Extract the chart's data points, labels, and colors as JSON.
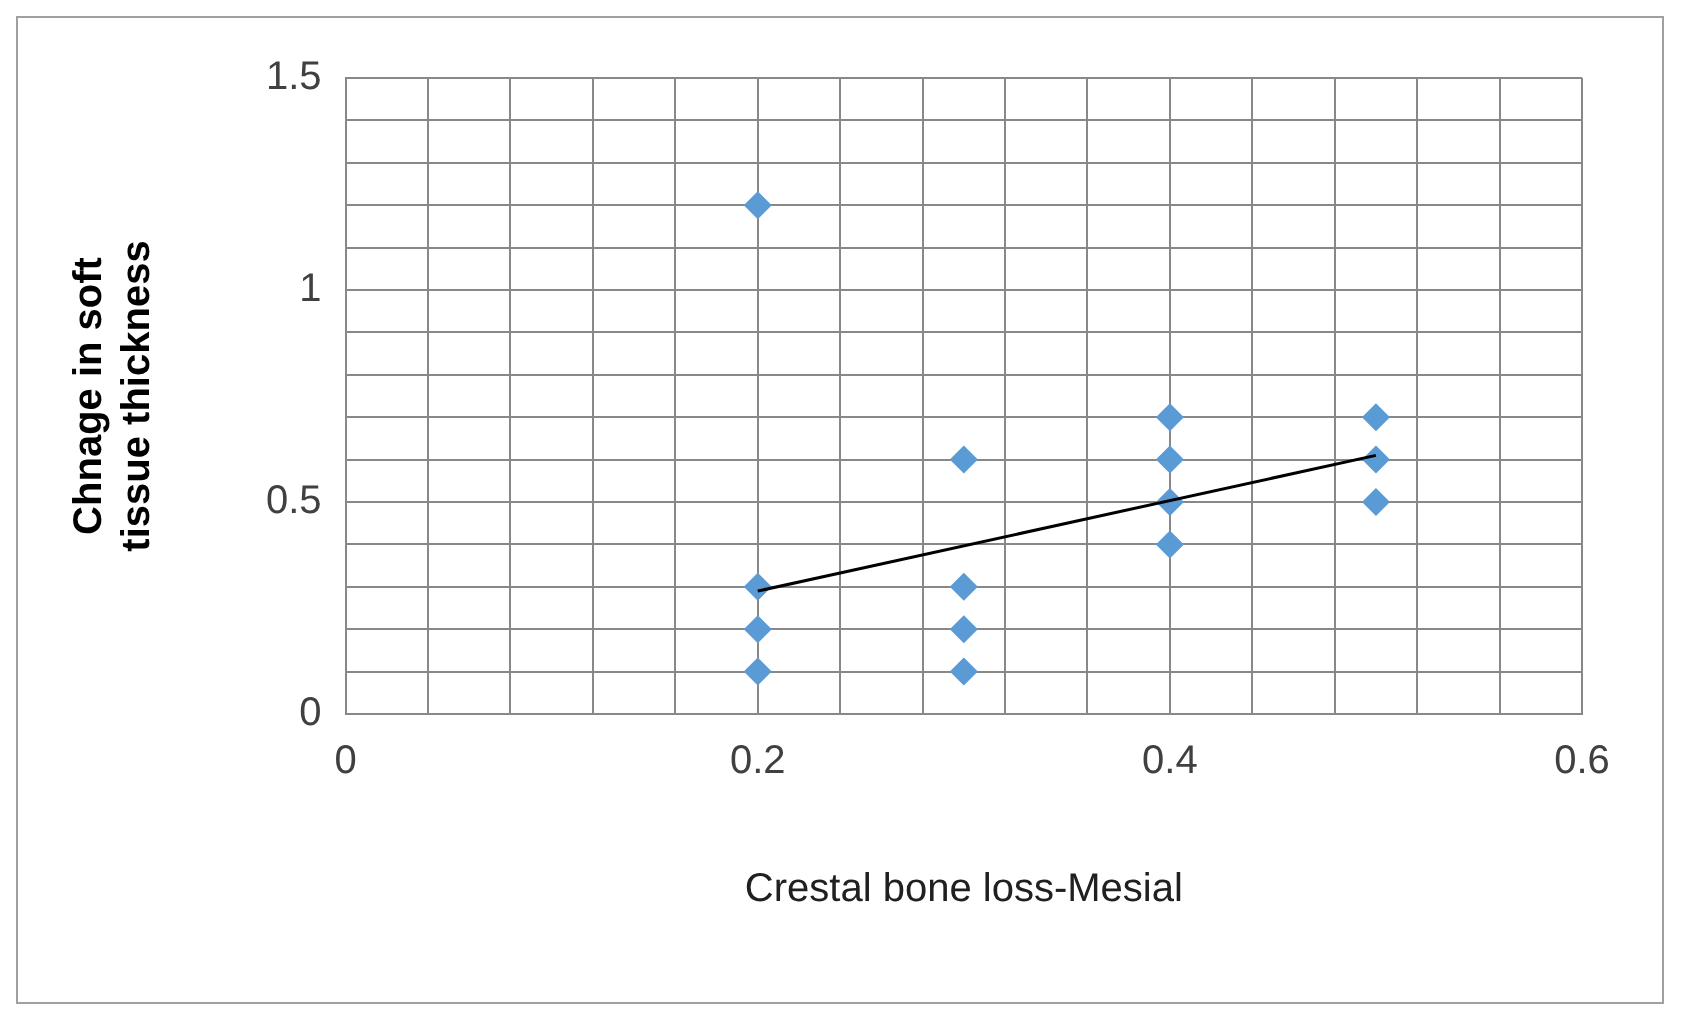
{
  "chart_data": {
    "type": "scatter",
    "xlabel": "Crestal bone loss-Mesial",
    "ylabel": "Chnage in soft tissue thickness",
    "xlim": [
      0,
      0.6
    ],
    "ylim": [
      0,
      1.5
    ],
    "xticks": [
      0,
      {
        "value": 0.04,
        "label": null
      },
      {
        "value": 0.08,
        "label": null
      },
      {
        "value": 0.12,
        "label": null
      },
      {
        "value": 0.16,
        "label": null
      },
      0.2,
      {
        "value": 0.24,
        "label": null
      },
      {
        "value": 0.28,
        "label": null
      },
      {
        "value": 0.32,
        "label": null
      },
      {
        "value": 0.36,
        "label": null
      },
      0.4,
      {
        "value": 0.44,
        "label": null
      },
      {
        "value": 0.48,
        "label": null
      },
      {
        "value": 0.52,
        "label": null
      },
      {
        "value": 0.56,
        "label": null
      },
      0.6
    ],
    "yticks": [
      0,
      {
        "value": 0.1,
        "label": null
      },
      {
        "value": 0.2,
        "label": null
      },
      {
        "value": 0.3,
        "label": null
      },
      {
        "value": 0.4,
        "label": null
      },
      0.5,
      {
        "value": 0.6,
        "label": null
      },
      {
        "value": 0.7,
        "label": null
      },
      {
        "value": 0.8,
        "label": null
      },
      {
        "value": 0.9,
        "label": null
      },
      1,
      {
        "value": 1.1,
        "label": null
      },
      {
        "value": 1.2,
        "label": null
      },
      {
        "value": 1.3,
        "label": null
      },
      {
        "value": 1.4,
        "label": null
      },
      1.5
    ],
    "grid": true,
    "legend": false,
    "marker": "diamond",
    "series": [
      {
        "type": "scatter",
        "color": "#5b9bd5",
        "x": [
          0.2,
          0.2,
          0.2,
          0.2,
          0.3,
          0.3,
          0.3,
          0.3,
          0.4,
          0.4,
          0.4,
          0.4,
          0.5,
          0.5,
          0.5
        ],
        "values": [
          1.2,
          0.3,
          0.2,
          0.1,
          0.6,
          0.3,
          0.2,
          0.1,
          0.7,
          0.6,
          0.5,
          0.4,
          0.7,
          0.6,
          0.5
        ]
      },
      {
        "type": "line",
        "color": "#000000",
        "marker": "none",
        "x": [
          0.2,
          0.5
        ],
        "values": [
          0.29,
          0.61
        ]
      }
    ]
  }
}
